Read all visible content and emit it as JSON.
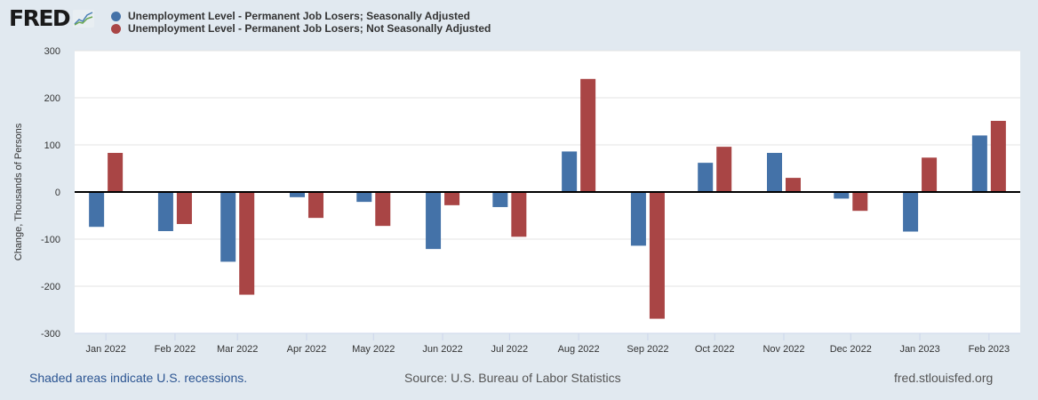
{
  "logo": {
    "text": "FRED",
    "icon": "line-chart-icon"
  },
  "chart_data": {
    "type": "bar",
    "title": "",
    "ylabel": "Change, Thousands of Persons",
    "xlabel": "",
    "ylim": [
      -300,
      300
    ],
    "yticks": [
      300,
      200,
      100,
      0,
      -100,
      -200,
      -300
    ],
    "grid": true,
    "legend_position": "top-left",
    "categories": [
      "Jan 2022",
      "Feb 2022",
      "Mar 2022",
      "Apr 2022",
      "May 2022",
      "Jun 2022",
      "Jul 2022",
      "Aug 2022",
      "Sep 2022",
      "Oct 2022",
      "Nov 2022",
      "Dec 2022",
      "Jan 2023",
      "Feb 2023"
    ],
    "dates": [
      "2022-01-01",
      "2022-02-01",
      "2022-03-01",
      "2022-04-01",
      "2022-05-01",
      "2022-06-01",
      "2022-07-01",
      "2022-08-01",
      "2022-09-01",
      "2022-10-01",
      "2022-11-01",
      "2022-12-01",
      "2023-01-01",
      "2023-02-01"
    ],
    "series": [
      {
        "name": "Unemployment Level - Permanent Job Losers; Seasonally Adjusted",
        "color": "#4472a8",
        "values": [
          -74,
          -83,
          -148,
          -11,
          -21,
          -121,
          -32,
          86,
          -114,
          62,
          83,
          -14,
          -84,
          120
        ]
      },
      {
        "name": "Unemployment Level - Permanent Job Losers; Not Seasonally Adjusted",
        "color": "#a94545",
        "values": [
          83,
          -68,
          -218,
          -55,
          -72,
          -28,
          -95,
          240,
          -269,
          96,
          30,
          -40,
          73,
          151
        ]
      }
    ]
  },
  "footer": {
    "recessions": "Shaded areas indicate U.S. recessions.",
    "source": "Source: U.S. Bureau of Labor Statistics",
    "site": "fred.stlouisfed.org"
  }
}
